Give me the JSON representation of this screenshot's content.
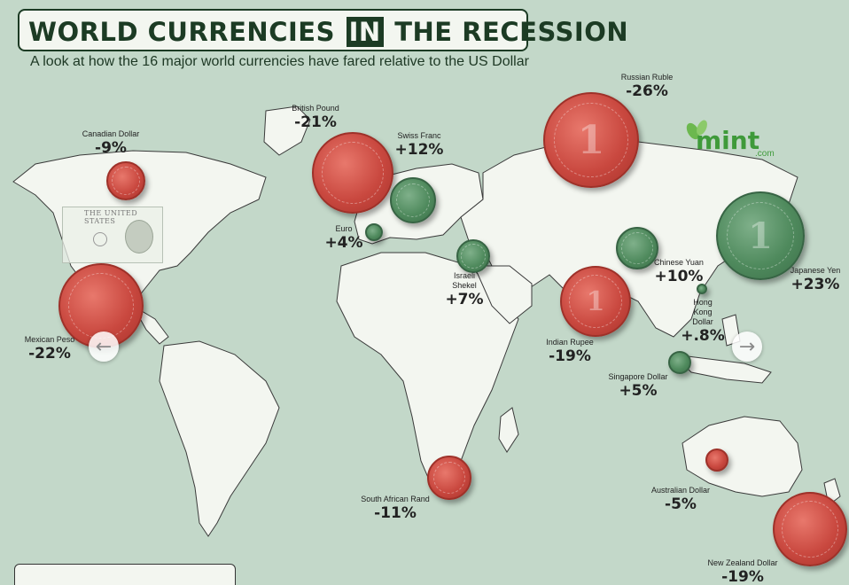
{
  "title": {
    "before": "WORLD CURRENCIES",
    "in_word": "IN",
    "after": "THE RECESSION"
  },
  "subtitle": "A look at how the 16 major world currencies have fared relative to the US Dollar",
  "logo": {
    "name": "mint",
    "suffix": ".com"
  },
  "dollar_bill_text": "THE UNITED STATES",
  "colors": {
    "gain": "#4f8a5d",
    "loss": "#c9483f",
    "land": "#f3f6f0",
    "ocean": "#c3d8c9",
    "title": "#1c3b24"
  },
  "currencies": [
    {
      "name": "Canadian Dollar",
      "change": "-9%",
      "trend": "loss"
    },
    {
      "name": "British Pound",
      "change": "-21%",
      "trend": "loss"
    },
    {
      "name": "Swiss Franc",
      "change": "+12%",
      "trend": "gain"
    },
    {
      "name": "Russian Ruble",
      "change": "-26%",
      "trend": "loss"
    },
    {
      "name": "Euro",
      "change": "+4%",
      "trend": "gain"
    },
    {
      "name": "Israeli Shekel",
      "change": "+7%",
      "trend": "gain"
    },
    {
      "name": "Chinese Yuan",
      "change": "+10%",
      "trend": "gain"
    },
    {
      "name": "Japanese Yen",
      "change": "+23%",
      "trend": "gain"
    },
    {
      "name": "Hong Kong Dollar",
      "change": "+.8%",
      "trend": "gain"
    },
    {
      "name": "Mexican Peso",
      "change": "-22%",
      "trend": "loss"
    },
    {
      "name": "Indian Rupee",
      "change": "-19%",
      "trend": "loss"
    },
    {
      "name": "Singapore Dollar",
      "change": "+5%",
      "trend": "gain"
    },
    {
      "name": "South African Rand",
      "change": "-11%",
      "trend": "loss"
    },
    {
      "name": "Australian Dollar",
      "change": "-5%",
      "trend": "loss"
    },
    {
      "name": "New Zealand Dollar",
      "change": "-19%",
      "trend": "loss"
    }
  ],
  "nav": {
    "prev_icon": "chevron-left-icon",
    "next_icon": "chevron-right-icon",
    "prev_glyph": "←",
    "next_glyph": "→"
  }
}
